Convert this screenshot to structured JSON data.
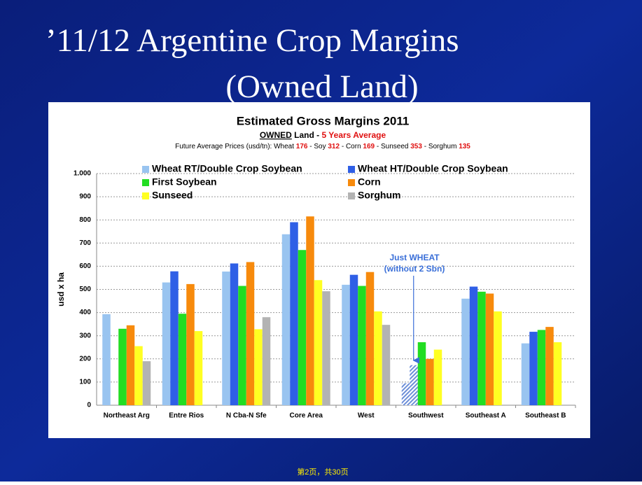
{
  "slide_title": [
    "’11/12 Argentine Crop Margins",
    "(Owned Land)"
  ],
  "footer": "第2页，共30页",
  "chart_data": {
    "type": "bar",
    "title": "Estimated Gross Margins 2011",
    "subtitle": [
      "OWNED",
      " Land - ",
      "5 Years Average"
    ],
    "note": [
      "Future Average Prices (usd/tn): Wheat ",
      "176",
      " - Soy ",
      "312",
      " - Corn ",
      "169",
      " - Sunseed ",
      "353",
      " - Sorghum ",
      "135"
    ],
    "highlight_color": "#e01010",
    "ylabel": "usd x ha",
    "annotation": [
      "Just WHEAT",
      "(without 2 Sbn)"
    ],
    "annotation_color": "#3a6fd8",
    "categories": [
      "Northeast Arg",
      "Entre Rios",
      "N Cba-N Sfe",
      "Core Area",
      "West",
      "Southwest",
      "Southeast A",
      "Southeast B"
    ],
    "hatched_category_index": 5,
    "series": [
      {
        "name": "Wheat RT/Double Crop Soybean",
        "color": "#99c4f0",
        "values": [
          393,
          530,
          577,
          738,
          520,
          95,
          460,
          267
        ]
      },
      {
        "name": "Wheat HT/Double Crop Soybean",
        "color": "#2f5fe6",
        "values": [
          null,
          578,
          612,
          790,
          563,
          173,
          512,
          317
        ]
      },
      {
        "name": "First Soybean",
        "color": "#22dd22",
        "values": [
          330,
          395,
          515,
          670,
          515,
          272,
          490,
          325
        ]
      },
      {
        "name": "Corn",
        "color": "#f78a0c",
        "values": [
          345,
          523,
          618,
          815,
          575,
          200,
          482,
          338
        ]
      },
      {
        "name": "Sunseed",
        "color": "#ffff22",
        "values": [
          255,
          320,
          328,
          540,
          405,
          240,
          405,
          272
        ]
      },
      {
        "name": "Sorghum",
        "color": "#b3b3b3",
        "values": [
          190,
          null,
          380,
          492,
          347,
          null,
          null,
          null
        ]
      }
    ],
    "ylim": [
      0,
      1000
    ],
    "yticks": [
      0,
      100,
      200,
      300,
      400,
      500,
      600,
      700,
      800,
      900,
      {
        "value": 1000,
        "label": "1.000"
      }
    ],
    "grid": true
  }
}
